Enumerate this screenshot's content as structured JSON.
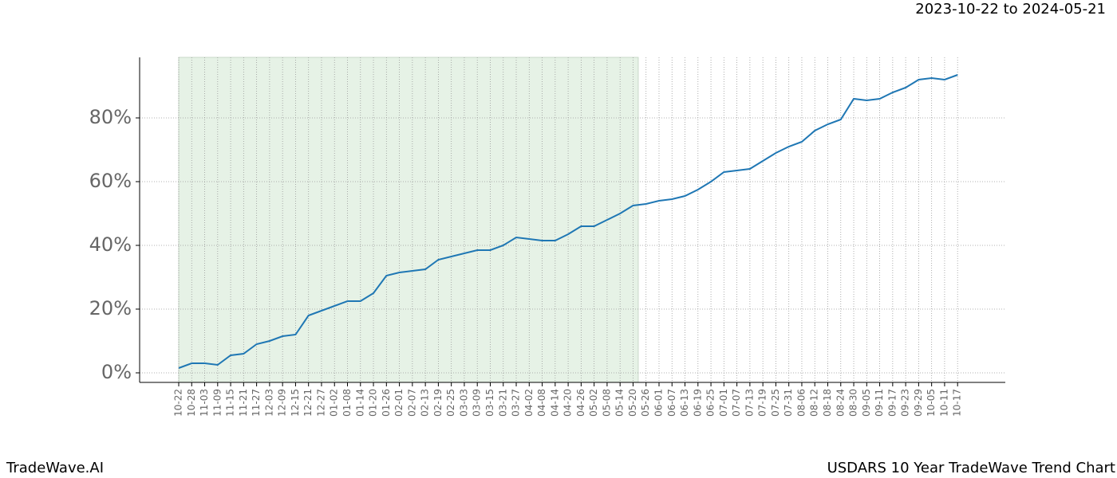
{
  "chart_data": {
    "type": "line",
    "title": "2023-10-22 to 2024-05-21",
    "watermark": "TradeWave.AI",
    "caption": "USDARS 10 Year TradeWave Trend Chart",
    "categories": [
      "10-22",
      "10-28",
      "11-03",
      "11-09",
      "11-15",
      "11-21",
      "11-27",
      "12-03",
      "12-09",
      "12-15",
      "12-21",
      "12-27",
      "01-02",
      "01-08",
      "01-14",
      "01-20",
      "01-26",
      "02-01",
      "02-07",
      "02-13",
      "02-19",
      "02-25",
      "03-03",
      "03-09",
      "03-15",
      "03-21",
      "03-27",
      "04-02",
      "04-08",
      "04-14",
      "04-20",
      "04-26",
      "05-02",
      "05-08",
      "05-14",
      "05-20",
      "05-26",
      "06-01",
      "06-07",
      "06-13",
      "06-19",
      "06-25",
      "07-01",
      "07-07",
      "07-13",
      "07-19",
      "07-25",
      "07-31",
      "08-06",
      "08-12",
      "08-18",
      "08-24",
      "08-30",
      "09-05",
      "09-11",
      "09-17",
      "09-23",
      "09-29",
      "10-05",
      "10-11",
      "10-17"
    ],
    "series": [
      {
        "color": "#1f77b4",
        "values": [
          1.5,
          3,
          3,
          2.5,
          5.5,
          6,
          9,
          10,
          11.5,
          12,
          18,
          19.5,
          21,
          22.5,
          22.5,
          25,
          30.5,
          31.5,
          32,
          32.5,
          35.5,
          36.5,
          37.5,
          38.5,
          38.5,
          40,
          42.5,
          42,
          41.5,
          41.5,
          43.5,
          46,
          46,
          48,
          50,
          52.5,
          53,
          54,
          54.5,
          55.5,
          57.5,
          60,
          63,
          63.5,
          64,
          66.5,
          69,
          71,
          72.5,
          76,
          78,
          79.5,
          86,
          85.5,
          86,
          88,
          89.5,
          92,
          92.5,
          92,
          93.5
        ]
      }
    ],
    "highlight": {
      "from": "10-22",
      "to": "05-20",
      "color": "#e6f2e6"
    },
    "ylim": [
      -3,
      99
    ],
    "yticks": [
      {
        "value": 0,
        "label": "0%"
      },
      {
        "value": 20,
        "label": "20%"
      },
      {
        "value": 40,
        "label": "40%"
      },
      {
        "value": 60,
        "label": "60%"
      },
      {
        "value": 80,
        "label": "80%"
      }
    ],
    "grid": true
  }
}
